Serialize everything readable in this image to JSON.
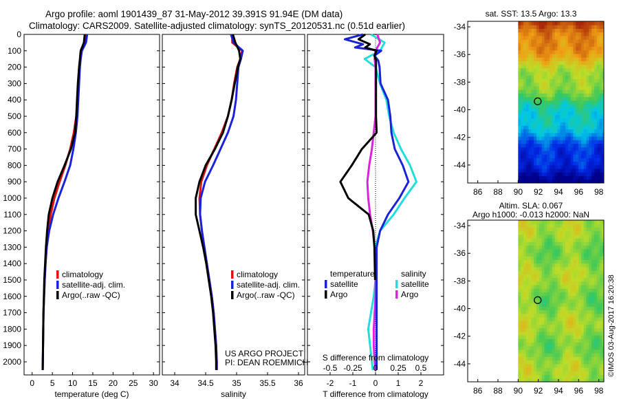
{
  "title": {
    "line1": "Argo profile: aoml 1901439_87 31-May-2012 39.391S 91.94E (DM data)",
    "line2": "Climatology: CARS2009. Satellite-adjusted climatology: synTS_20120531.nc (0.51d earlier)"
  },
  "credits": {
    "project": "US ARGO PROJECT",
    "pi": "PI: DEAN ROEMMICH",
    "imos": "©IMOS 03-Aug-2017 16:20:38"
  },
  "colors": {
    "climatology": "#dd1111",
    "satellite": "#1a22d8",
    "argo": "#000000",
    "sal_satellite": "#22dddd",
    "sal_argo": "#dd22dd"
  },
  "chart_data": [
    {
      "id": "temperature",
      "type": "line",
      "xlabel": "temperature (deg C)",
      "ylabel": "",
      "xlim": [
        -2,
        31.5
      ],
      "ylim": [
        2080,
        0
      ],
      "xticks": [
        "0",
        "5",
        "10",
        "15",
        "20",
        "25",
        "30"
      ],
      "xtick_values": [
        0,
        5,
        10,
        15,
        20,
        25,
        30
      ],
      "yticks": [
        "0",
        "100",
        "200",
        "300",
        "400",
        "500",
        "600",
        "700",
        "800",
        "900",
        "1000",
        "1100",
        "1200",
        "1300",
        "1400",
        "1500",
        "1600",
        "1700",
        "1800",
        "1900",
        "2000"
      ],
      "ytick_values": [
        0,
        100,
        200,
        300,
        400,
        500,
        600,
        700,
        800,
        900,
        1000,
        1100,
        1200,
        1300,
        1400,
        1500,
        1600,
        1700,
        1800,
        1900,
        2000
      ],
      "legend": [
        "climatology",
        "satellite-adj. clim.",
        "Argo(..raw -QC)"
      ],
      "series": [
        {
          "name": "climatology",
          "color": "#dd1111",
          "depth": [
            0,
            50,
            100,
            150,
            200,
            300,
            400,
            500,
            600,
            700,
            800,
            900,
            1000,
            1100,
            1200,
            1300,
            1400,
            1500,
            1700,
            2050
          ],
          "values": [
            13.2,
            12.9,
            12.2,
            11.9,
            11.6,
            11.4,
            11.2,
            10.9,
            10.3,
            9.4,
            8.2,
            6.8,
            5.5,
            4.6,
            4.0,
            3.6,
            3.3,
            3.1,
            2.8,
            2.6
          ]
        },
        {
          "name": "satellite-adj. clim.",
          "color": "#1a22d8",
          "depth": [
            0,
            50,
            100,
            150,
            200,
            300,
            400,
            500,
            600,
            700,
            800,
            900,
            1000,
            1100,
            1200,
            1300,
            1400,
            1500,
            1700,
            2050
          ],
          "values": [
            13.6,
            13.3,
            12.3,
            12.0,
            11.8,
            11.6,
            11.4,
            11.2,
            10.8,
            10.2,
            9.4,
            8.0,
            6.5,
            5.2,
            4.2,
            3.6,
            3.3,
            3.1,
            2.8,
            2.6
          ]
        },
        {
          "name": "Argo(..raw -QC)",
          "color": "#000000",
          "depth": [
            0,
            50,
            100,
            150,
            200,
            300,
            400,
            500,
            600,
            700,
            800,
            900,
            1000,
            1100,
            1200,
            1300,
            1400,
            1500,
            1700,
            2050
          ],
          "values": [
            13.0,
            12.8,
            12.0,
            11.8,
            11.6,
            11.3,
            11.1,
            10.9,
            10.6,
            9.6,
            8.0,
            6.3,
            5.0,
            4.1,
            3.7,
            3.4,
            3.2,
            3.0,
            2.8,
            2.6
          ]
        }
      ]
    },
    {
      "id": "salinity",
      "type": "line",
      "xlabel": "salinity",
      "ylabel": "",
      "xlim": [
        33.8,
        36.1
      ],
      "ylim": [
        2080,
        0
      ],
      "xticks": [
        "34",
        "34.5",
        "35",
        "35.5",
        "36"
      ],
      "xtick_values": [
        34,
        34.5,
        35,
        35.5,
        36
      ],
      "legend": [
        "climatology",
        "satellite-adj. clim.",
        "Argo(..raw -QC)"
      ],
      "series": [
        {
          "name": "climatology",
          "color": "#dd1111",
          "depth": [
            0,
            50,
            100,
            150,
            200,
            300,
            400,
            500,
            600,
            700,
            800,
            900,
            1000,
            1100,
            1200,
            1300,
            1400,
            1500,
            1600,
            1700,
            1800,
            1900,
            2000,
            2050
          ],
          "values": [
            34.93,
            34.93,
            35.09,
            35.06,
            35.01,
            34.96,
            34.92,
            34.86,
            34.76,
            34.64,
            34.52,
            34.43,
            34.4,
            34.41,
            34.44,
            34.48,
            34.52,
            34.56,
            34.6,
            34.63,
            34.65,
            34.67,
            34.68,
            34.68
          ]
        },
        {
          "name": "satellite-adj. clim.",
          "color": "#1a22d8",
          "depth": [
            0,
            50,
            100,
            150,
            200,
            300,
            400,
            500,
            600,
            700,
            800,
            900,
            1000,
            1100,
            1200,
            1300,
            1400,
            1500,
            1600,
            1700,
            1800,
            1900,
            2000,
            2050
          ],
          "values": [
            34.91,
            34.95,
            35.1,
            35.07,
            35.03,
            35.01,
            34.99,
            34.95,
            34.86,
            34.74,
            34.62,
            34.49,
            34.42,
            34.41,
            34.44,
            34.48,
            34.52,
            34.56,
            34.6,
            34.63,
            34.65,
            34.67,
            34.68,
            34.68
          ]
        },
        {
          "name": "Argo(..raw -QC)",
          "color": "#000000",
          "depth": [
            0,
            50,
            100,
            150,
            200,
            300,
            400,
            500,
            600,
            700,
            800,
            900,
            1000,
            1100,
            1200,
            1300,
            1400,
            1500,
            1600,
            1700,
            1800,
            1900,
            2000,
            2050
          ],
          "values": [
            34.94,
            34.98,
            35.04,
            35.06,
            35.02,
            34.97,
            34.92,
            34.86,
            34.78,
            34.65,
            34.5,
            34.4,
            34.34,
            34.34,
            34.4,
            34.46,
            34.51,
            34.55,
            34.59,
            34.62,
            34.64,
            34.66,
            34.67,
            34.67
          ]
        }
      ]
    },
    {
      "id": "difference",
      "type": "line",
      "xlabel": "T difference from climatology",
      "xlabel_top": "S difference from climatology",
      "xlim": [
        -3.0,
        3.0
      ],
      "ylim": [
        2080,
        0
      ],
      "xticks": [
        "-2",
        "-1",
        "0",
        "1",
        "2"
      ],
      "xtick_values": [
        -2,
        -1,
        0,
        1,
        2
      ],
      "sticks": [
        "-0.5",
        "-0.25",
        "0",
        "0.25",
        "0.5"
      ],
      "stick_values": [
        -0.5,
        -0.25,
        0,
        0.25,
        0.5
      ],
      "legend_temperature": {
        "title": "temperature",
        "items": [
          "satellite",
          "Argo"
        ]
      },
      "legend_salinity": {
        "title": "salinity",
        "items": [
          "satellite",
          "Argo"
        ]
      },
      "series": [
        {
          "name": "temperature satellite",
          "color": "#1a22d8",
          "depth": [
            0,
            30,
            60,
            80,
            100,
            130,
            160,
            200,
            300,
            400,
            500,
            600,
            700,
            800,
            900,
            1000,
            1100,
            1200,
            1300,
            1500,
            1800,
            2050
          ],
          "values": [
            -0.55,
            -1.35,
            -0.55,
            -0.9,
            0.25,
            -0.05,
            0.12,
            0.18,
            0.22,
            0.55,
            0.65,
            0.7,
            0.85,
            1.2,
            1.45,
            1.05,
            0.55,
            0.2,
            0.05,
            0.05,
            0.05,
            0.05
          ]
        },
        {
          "name": "temperature Argo",
          "color": "#000000",
          "depth": [
            0,
            30,
            60,
            80,
            100,
            130,
            160,
            200,
            300,
            400,
            500,
            600,
            700,
            800,
            900,
            1000,
            1100,
            1200,
            1300,
            1500
          ],
          "values": [
            -0.45,
            -0.75,
            -0.25,
            -0.45,
            0.05,
            -0.05,
            0.02,
            0.02,
            0.02,
            0.02,
            0.02,
            0.05,
            -0.6,
            -1.05,
            -1.55,
            -1.2,
            -0.3,
            -0.1,
            -0.05,
            -0.02
          ]
        },
        {
          "name": "salinity satellite",
          "color": "#22dddd",
          "depth": [
            0,
            50,
            100,
            150,
            200,
            300,
            400,
            500,
            600,
            700,
            800,
            900,
            1000,
            1100,
            1200,
            1300,
            1400,
            1500,
            1600,
            1700,
            1800,
            1900,
            2000,
            2050
          ],
          "values": [
            -0.05,
            0.1,
            0.05,
            -0.12,
            0.0,
            0.05,
            0.12,
            0.15,
            0.2,
            0.28,
            0.38,
            0.45,
            0.32,
            0.2,
            0.05,
            0.0,
            0.0,
            0.0,
            -0.02,
            -0.05,
            -0.08,
            -0.06,
            -0.04,
            -0.03
          ]
        },
        {
          "name": "salinity Argo",
          "color": "#dd22dd",
          "depth": [
            0,
            50,
            100,
            150,
            200,
            300,
            400,
            500,
            600,
            700,
            800,
            900,
            1000,
            1100,
            1200,
            1300,
            1400,
            1500,
            1600,
            1700,
            1800,
            1900,
            2000,
            2050
          ],
          "values": [
            0.02,
            0.05,
            0.0,
            -0.01,
            0.0,
            0.0,
            0.0,
            0.0,
            -0.02,
            -0.04,
            -0.07,
            -0.09,
            -0.08,
            -0.06,
            -0.03,
            -0.01,
            0.0,
            0.0,
            0.0,
            -0.01,
            -0.02,
            -0.02,
            -0.01,
            0.0
          ]
        }
      ]
    },
    {
      "id": "sst_map",
      "type": "heatmap",
      "title": "sat. SST: 13.5 Argo: 13.3",
      "xlim": [
        85,
        98.5
      ],
      "ylim": [
        -45.3,
        -33.6
      ],
      "xticks": [
        "86",
        "88",
        "90",
        "92",
        "94",
        "96",
        "98"
      ],
      "xtick_values": [
        86,
        88,
        90,
        92,
        94,
        96,
        98
      ],
      "yticks": [
        "-34",
        "-36",
        "-38",
        "-40",
        "-42",
        "-44"
      ],
      "ytick_values": [
        -34,
        -36,
        -38,
        -40,
        -42,
        -44
      ],
      "data_lon_range": [
        90,
        98.5
      ],
      "profile_location": [
        91.94,
        -39.391
      ]
    },
    {
      "id": "sla_map",
      "type": "heatmap",
      "title_line1": "Altim. SLA: 0.067",
      "title_line2": "Argo h1000: -0.013 h2000: NaN",
      "xlim": [
        85,
        98.5
      ],
      "ylim": [
        -45.3,
        -33.6
      ],
      "xticks": [
        "86",
        "88",
        "90",
        "92",
        "94",
        "96",
        "98"
      ],
      "xtick_values": [
        86,
        88,
        90,
        92,
        94,
        96,
        98
      ],
      "yticks": [
        "-34",
        "-36",
        "-38",
        "-40",
        "-42",
        "-44"
      ],
      "ytick_values": [
        -34,
        -36,
        -38,
        -40,
        -42,
        -44
      ],
      "data_lon_range": [
        90,
        98.5
      ],
      "profile_location": [
        91.94,
        -39.391
      ]
    }
  ]
}
